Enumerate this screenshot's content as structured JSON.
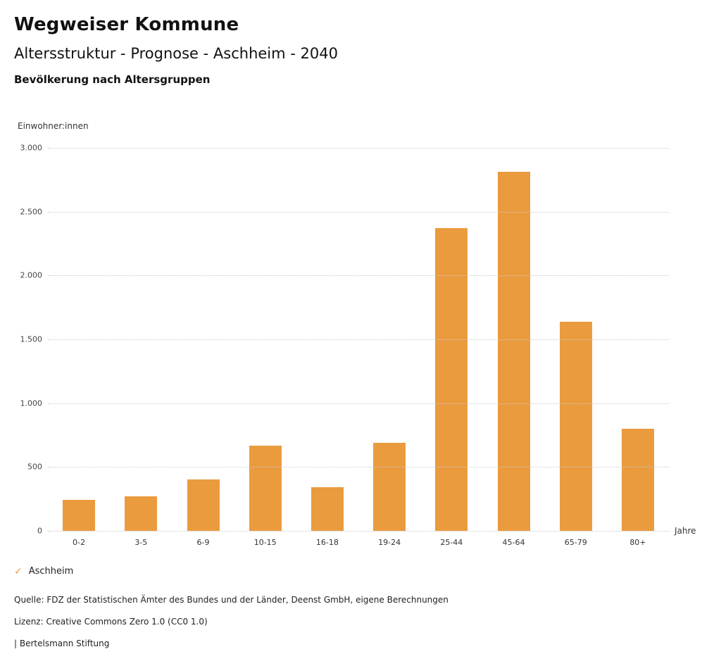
{
  "header": {
    "title": "Wegweiser Kommune",
    "subtitle": "Altersstruktur - Prognose - Aschheim - 2040",
    "section_title": "Bevölkerung nach Altersgruppen"
  },
  "chart_data": {
    "type": "bar",
    "title": "Bevölkerung nach Altersgruppen",
    "xlabel": "Jahre",
    "ylabel": "Einwohner:innen",
    "categories": [
      "0-2",
      "3-5",
      "6-9",
      "10-15",
      "16-18",
      "19-24",
      "25-44",
      "45-64",
      "65-79",
      "80+"
    ],
    "series": [
      {
        "name": "Aschheim",
        "values": [
          240,
          270,
          400,
          670,
          340,
          690,
          2370,
          2810,
          1640,
          800
        ]
      }
    ],
    "ylim": [
      0,
      3000
    ],
    "ytick_step": 500,
    "ytick_labels": [
      "0",
      "500",
      "1.000",
      "1.500",
      "2.000",
      "2.500",
      "3.000"
    ],
    "grid": true,
    "grid_style": "dotted",
    "legend_position": "bottom",
    "bar_color": "#EA9B3E"
  },
  "legend": {
    "check_icon": "✓",
    "label": "Aschheim",
    "color": "#EA9B3E"
  },
  "footer": {
    "source": "Quelle: FDZ der Statistischen Ämter des Bundes und der Länder, Deenst GmbH, eigene Berechnungen",
    "license": "Lizenz: Creative Commons Zero 1.0 (CC0 1.0)",
    "brand": "| Bertelsmann Stiftung"
  }
}
